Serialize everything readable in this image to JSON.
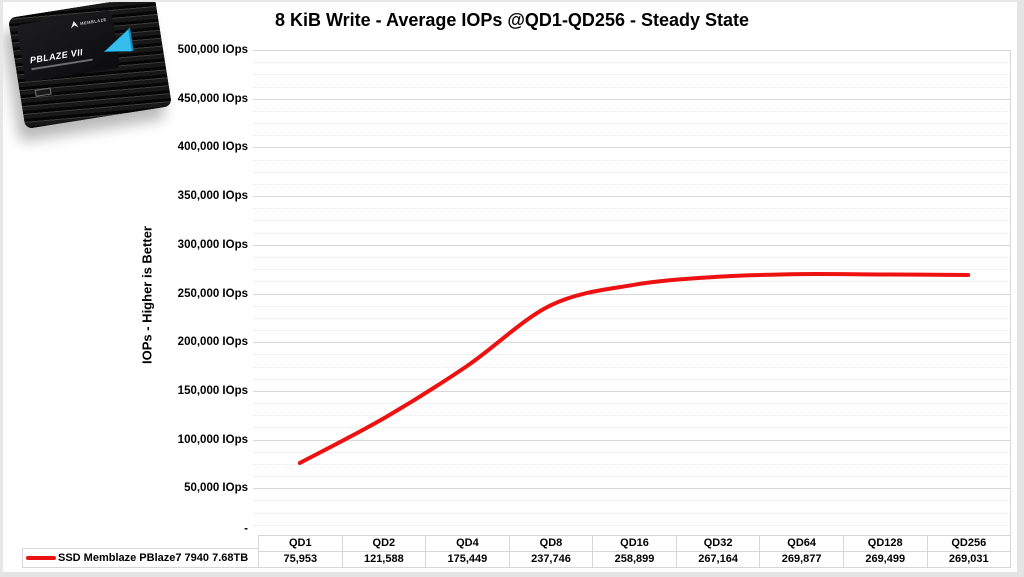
{
  "title": "8 KiB Write - Average IOPs @QD1-QD256 - Steady State",
  "y_axis": {
    "label": "IOPs  -  Higher is Better",
    "ticks": [
      "500,000 IOps",
      "450,000 IOps",
      "400,000 IOps",
      "350,000 IOps",
      "300,000 IOps",
      "250,000 IOps",
      "200,000 IOps",
      "150,000 IOps",
      "100,000 IOps",
      "50,000 IOps",
      "-"
    ]
  },
  "legend": {
    "series_label": "SSD Memblaze PBlaze7 7940 7.68TB",
    "swatch_color": "#ee1111"
  },
  "table": {
    "headers": [
      "QD1",
      "QD2",
      "QD4",
      "QD8",
      "QD16",
      "QD32",
      "QD64",
      "QD128",
      "QD256"
    ],
    "values": [
      "75,953",
      "121,588",
      "175,449",
      "237,746",
      "258,899",
      "267,164",
      "269,877",
      "269,499",
      "269,031"
    ]
  },
  "ssd_image": {
    "model": "PBLAZE VII",
    "brand": "MEMBLAZE",
    "accent_color": "#35bdee"
  },
  "chart_data": {
    "type": "line",
    "title": "8 KiB Write - Average IOPs @QD1-QD256 - Steady State",
    "categories": [
      "QD1",
      "QD2",
      "QD4",
      "QD8",
      "QD16",
      "QD32",
      "QD64",
      "QD128",
      "QD256"
    ],
    "series": [
      {
        "name": "SSD Memblaze PBlaze7 7940 7.68TB",
        "color": "#ee1111",
        "values": [
          75953,
          121588,
          175449,
          237746,
          258899,
          267164,
          269877,
          269499,
          269031
        ]
      }
    ],
    "xlabel": "",
    "ylabel": "IOPs - Higher is Better",
    "ylim": [
      0,
      500000
    ],
    "ytick_step": 50000,
    "ytick_minor_step": 12500,
    "ytick_suffix": " IOps",
    "grid": true,
    "smooth_line": true,
    "legend_position": "bottom-left",
    "data_table_shown": true
  }
}
